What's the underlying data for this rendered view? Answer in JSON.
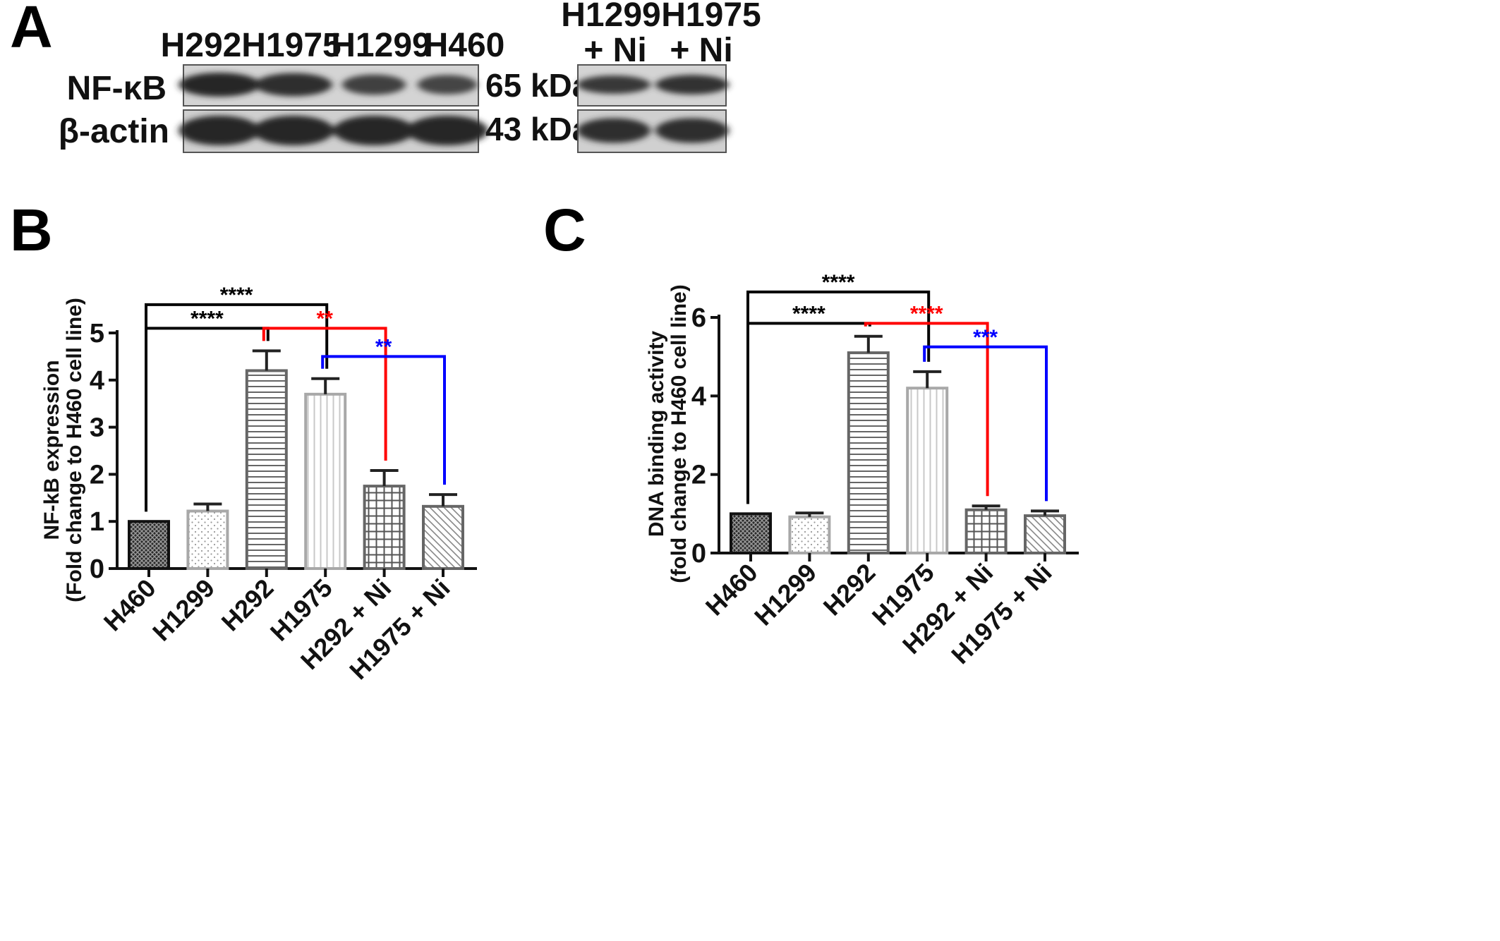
{
  "panel_a": {
    "letter": "A",
    "lanes_main": [
      "H292",
      "H1975",
      "H1299",
      "H460"
    ],
    "lanes_ni": [
      [
        "H1299",
        "+ Ni"
      ],
      [
        "H1975",
        "+ Ni"
      ]
    ],
    "rows": [
      {
        "label": "NF-κB",
        "kda": "65 kDa",
        "intensity_main": [
          1.0,
          0.9,
          0.55,
          0.45
        ],
        "intensity_ni": [
          0.7,
          0.85
        ]
      },
      {
        "label": "β-actin",
        "kda": "43 kDa",
        "intensity_main": [
          1.0,
          1.0,
          1.0,
          1.0
        ],
        "intensity_ni": [
          0.9,
          0.9
        ]
      }
    ]
  },
  "chart_data": [
    {
      "letter": "B",
      "type": "bar",
      "categories": [
        "H460",
        "H1299",
        "H292",
        "H1975",
        "H292 + Ni",
        "H1975 + Ni"
      ],
      "values": [
        1.0,
        1.22,
        4.2,
        3.7,
        1.75,
        1.32
      ],
      "errors": [
        0,
        0.15,
        0.42,
        0.33,
        0.33,
        0.25
      ],
      "patterns": [
        "crosshatch",
        "dots",
        "hlines",
        "vlines",
        "grid",
        "diagonal"
      ],
      "ylabel": [
        "NF-kB expression",
        "(Fold change to H460 cell line)"
      ],
      "ylim": [
        0,
        5
      ],
      "yticks": [
        0,
        1,
        2,
        3,
        4,
        5
      ],
      "significance": [
        {
          "from": 0,
          "to": 3,
          "label": "****",
          "color": "#000000",
          "level": 5.6
        },
        {
          "from": 0,
          "to": 2,
          "label": "****",
          "color": "#000000",
          "level": 5.1
        },
        {
          "from": 2,
          "to": 4,
          "label": "**",
          "color": "#ff0000",
          "level": 5.1
        },
        {
          "from": 3,
          "to": 5,
          "label": "**",
          "color": "#0000ff",
          "level": 4.5
        }
      ]
    },
    {
      "letter": "C",
      "type": "bar",
      "categories": [
        "H460",
        "H1299",
        "H292",
        "H1975",
        "H292 + Ni",
        "H1975 + Ni"
      ],
      "values": [
        1.0,
        0.92,
        5.1,
        4.2,
        1.1,
        0.95
      ],
      "errors": [
        0,
        0.1,
        0.42,
        0.42,
        0.1,
        0.12
      ],
      "patterns": [
        "crosshatch",
        "dots",
        "hlines",
        "vlines",
        "grid",
        "diagonal"
      ],
      "ylabel": [
        "DNA binding activity",
        "(fold change to H460 cell line)"
      ],
      "ylim": [
        0,
        6
      ],
      "yticks": [
        0,
        2,
        4,
        6
      ],
      "significance": [
        {
          "from": 0,
          "to": 3,
          "label": "****",
          "color": "#000000",
          "level": 6.65
        },
        {
          "from": 0,
          "to": 2,
          "label": "****",
          "color": "#000000",
          "level": 5.85
        },
        {
          "from": 2,
          "to": 4,
          "label": "****",
          "color": "#ff0000",
          "level": 5.85
        },
        {
          "from": 3,
          "to": 5,
          "label": "***",
          "color": "#0000ff",
          "level": 5.25
        }
      ]
    }
  ],
  "colors": {
    "black": "#000000",
    "red": "#ff0000",
    "blue": "#0000ff",
    "axis": "#111111"
  }
}
